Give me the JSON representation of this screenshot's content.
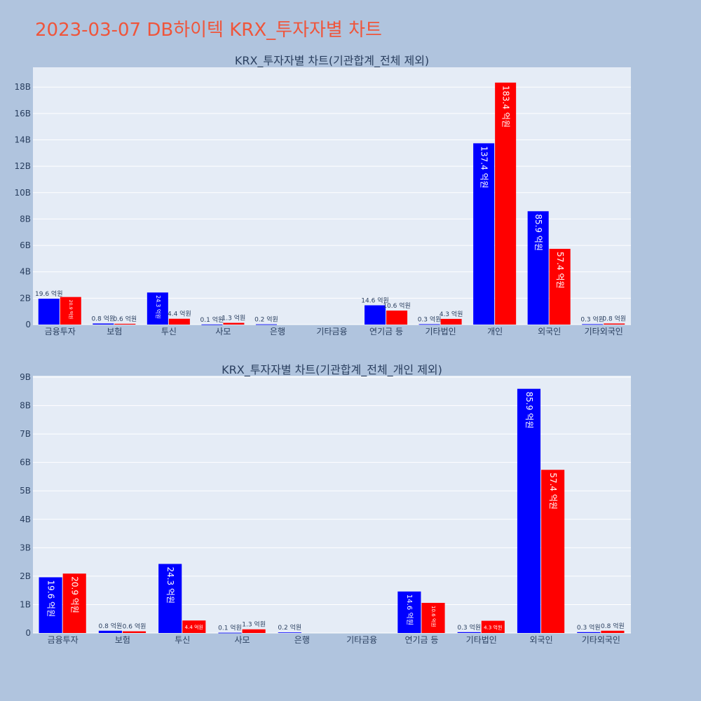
{
  "title": "2023-03-07 DB하이텍 KRX_투자자별 차트",
  "colors": {
    "background": "#b0c4de",
    "plot_bg": "#e5ecf6",
    "title": "#ef553b",
    "text": "#2a3f5f",
    "series_a": "#0000ff",
    "series_b": "#ff0000"
  },
  "chart_data": [
    {
      "type": "bar",
      "title": "KRX_투자자별 차트(기관합계_전체 제외)",
      "categories": [
        "금융투자",
        "보험",
        "투신",
        "사모",
        "은행",
        "기타금융",
        "연기금 등",
        "기타법인",
        "개인",
        "외국인",
        "기타외국인"
      ],
      "ylim": [
        0,
        19500000000
      ],
      "yticks": [
        0,
        2000000000,
        4000000000,
        6000000000,
        8000000000,
        10000000000,
        12000000000,
        14000000000,
        16000000000,
        18000000000
      ],
      "ytick_labels": [
        "0",
        "2B",
        "4B",
        "6B",
        "8B",
        "10B",
        "12B",
        "14B",
        "16B",
        "18B"
      ],
      "grid": true,
      "series": [
        {
          "color": "#0000ff",
          "values": [
            1960000000,
            80000000,
            2430000000,
            10000000,
            20000000,
            0,
            1460000000,
            30000000,
            13740000000,
            8590000000,
            30000000
          ],
          "labels": [
            "19.6 억원",
            "0.8 억원",
            "24.3 억원",
            "0.1 억원",
            "0.2 억원",
            "",
            "14.6 억원",
            "0.3 억원",
            "137.4 억원",
            "85.9 억원",
            "0.3 억원"
          ]
        },
        {
          "color": "#ff0000",
          "values": [
            2090000000,
            60000000,
            440000000,
            130000000,
            0,
            0,
            1060000000,
            430000000,
            18340000000,
            5740000000,
            80000000
          ],
          "labels": [
            "20.9 억원",
            "0.6 억원",
            "4.4 억원",
            "1.3 억원",
            "",
            "",
            "10.6 억원",
            "4.3 억원",
            "183.4 억원",
            "57.4 억원",
            "0.8 억원"
          ]
        }
      ]
    },
    {
      "type": "bar",
      "title": "KRX_투자자별 차트(기관합계_전체_개인 제외)",
      "categories": [
        "금융투자",
        "보험",
        "투신",
        "사모",
        "은행",
        "기타금융",
        "연기금 등",
        "기타법인",
        "외국인",
        "기타외국인"
      ],
      "ylim": [
        0,
        9050000000
      ],
      "yticks": [
        0,
        1000000000,
        2000000000,
        3000000000,
        4000000000,
        5000000000,
        6000000000,
        7000000000,
        8000000000,
        9000000000
      ],
      "ytick_labels": [
        "0",
        "1B",
        "2B",
        "3B",
        "4B",
        "5B",
        "6B",
        "7B",
        "8B",
        "9B"
      ],
      "grid": true,
      "series": [
        {
          "color": "#0000ff",
          "values": [
            1960000000,
            80000000,
            2430000000,
            10000000,
            20000000,
            0,
            1460000000,
            30000000,
            8590000000,
            30000000
          ],
          "labels": [
            "19.6 억원",
            "0.8 억원",
            "24.3 억원",
            "0.1 억원",
            "0.2 억원",
            "",
            "14.6 억원",
            "0.3 억원",
            "85.9 억원",
            "0.3 억원"
          ]
        },
        {
          "color": "#ff0000",
          "values": [
            2090000000,
            60000000,
            440000000,
            130000000,
            0,
            0,
            1060000000,
            430000000,
            5740000000,
            80000000
          ],
          "labels": [
            "20.9 억원",
            "0.6 억원",
            "4.4 억원",
            "1.3 억원",
            "",
            "",
            "10.6 억원",
            "4.3 억원",
            "57.4 억원",
            "0.8 억원"
          ]
        }
      ]
    }
  ]
}
